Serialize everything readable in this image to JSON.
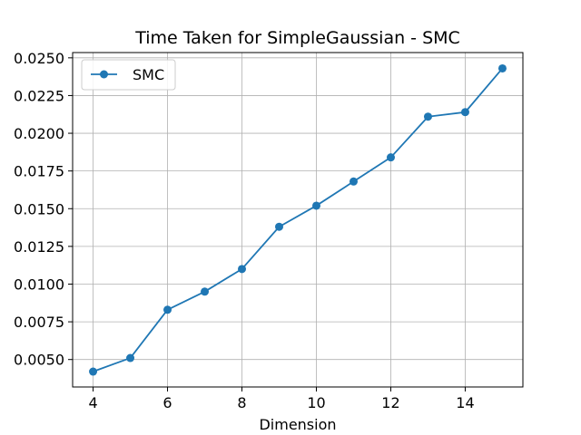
{
  "chart_data": {
    "type": "line",
    "title": "Time Taken for SimpleGaussian - SMC",
    "xlabel": "Dimension",
    "ylabel": "",
    "grid": true,
    "legend_position": "top-left",
    "xlim": [
      3.45,
      15.55
    ],
    "ylim": [
      0.00318,
      0.02535
    ],
    "x_ticks": [
      4,
      6,
      8,
      10,
      12,
      14
    ],
    "x_tick_labels": [
      "4",
      "6",
      "8",
      "10",
      "12",
      "14"
    ],
    "y_ticks": [
      0.005,
      0.0075,
      0.01,
      0.0125,
      0.015,
      0.0175,
      0.02,
      0.0225,
      0.025
    ],
    "y_tick_labels": [
      "0.0050",
      "0.0075",
      "0.0100",
      "0.0125",
      "0.0150",
      "0.0175",
      "0.0200",
      "0.0225",
      "0.0250"
    ],
    "series": [
      {
        "name": "SMC",
        "color": "#1f77b4",
        "marker": "circle",
        "x": [
          4,
          5,
          6,
          7,
          8,
          9,
          10,
          11,
          12,
          13,
          14,
          15
        ],
        "y": [
          0.0042,
          0.0051,
          0.0083,
          0.0095,
          0.011,
          0.0138,
          0.0152,
          0.0168,
          0.0184,
          0.0211,
          0.0214,
          0.0243
        ]
      }
    ]
  }
}
